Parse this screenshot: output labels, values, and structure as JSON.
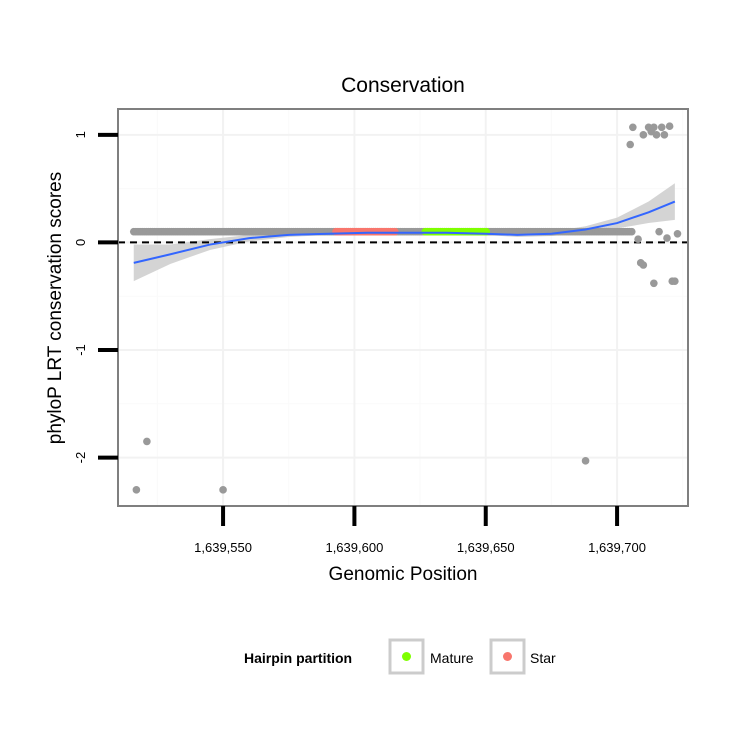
{
  "chart_data": {
    "type": "scatter",
    "title": "Conservation",
    "xlabel": "Genomic Position",
    "ylabel": "phyloP LRT conservation scores",
    "xlim": [
      1639510,
      1639727
    ],
    "ylim": [
      -2.45,
      1.24
    ],
    "x_ticks": [
      {
        "value": 1639550,
        "label": "1,639,550"
      },
      {
        "value": 1639600,
        "label": "1,639,600"
      },
      {
        "value": 1639650,
        "label": "1,639,650"
      },
      {
        "value": 1639700,
        "label": "1,639,700"
      }
    ],
    "y_ticks": [
      {
        "value": -2,
        "label": "-2"
      },
      {
        "value": -1,
        "label": "-1"
      },
      {
        "value": 0,
        "label": "0"
      },
      {
        "value": 1,
        "label": "1"
      }
    ],
    "grid": true,
    "reference_line": {
      "y": 0,
      "style": "dashed"
    },
    "background_points": {
      "color": "#999999",
      "dense_band": {
        "y": 0.1,
        "x_start": 1639516,
        "x_end": 1639706
      },
      "points": [
        [
          1639517,
          -2.3
        ],
        [
          1639521,
          -1.85
        ],
        [
          1639550,
          -2.3
        ],
        [
          1639688,
          -2.03
        ],
        [
          1639705,
          0.91
        ],
        [
          1639706,
          1.07
        ],
        [
          1639708,
          0.03
        ],
        [
          1639709,
          -0.19
        ],
        [
          1639710,
          -0.21
        ],
        [
          1639710,
          1.0
        ],
        [
          1639712,
          1.07
        ],
        [
          1639713,
          1.03
        ],
        [
          1639714,
          1.07
        ],
        [
          1639714,
          -0.38
        ],
        [
          1639715,
          1.0
        ],
        [
          1639716,
          0.1
        ],
        [
          1639717,
          1.07
        ],
        [
          1639718,
          1.0
        ],
        [
          1639719,
          0.04
        ],
        [
          1639720,
          1.08
        ],
        [
          1639721,
          -0.36
        ],
        [
          1639722,
          -0.36
        ],
        [
          1639723,
          0.08
        ]
      ]
    },
    "series": [
      {
        "name": "Mature",
        "color": "#7fff00",
        "x_start": 1639627,
        "x_end": 1639651,
        "y": 0.1
      },
      {
        "name": "Star",
        "color": "#f8766d",
        "x_start": 1639593,
        "x_end": 1639616,
        "y": 0.1
      }
    ],
    "smooth": {
      "color": "#3366ff",
      "band_color": "#cccccc",
      "fit": [
        [
          1639516,
          -0.19
        ],
        [
          1639530,
          -0.11
        ],
        [
          1639545,
          -0.02
        ],
        [
          1639560,
          0.04
        ],
        [
          1639575,
          0.07
        ],
        [
          1639590,
          0.08
        ],
        [
          1639605,
          0.09
        ],
        [
          1639620,
          0.09
        ],
        [
          1639635,
          0.09
        ],
        [
          1639650,
          0.08
        ],
        [
          1639662,
          0.07
        ],
        [
          1639675,
          0.08
        ],
        [
          1639688,
          0.12
        ],
        [
          1639700,
          0.18
        ],
        [
          1639712,
          0.28
        ],
        [
          1639722,
          0.38
        ]
      ],
      "lower": [
        [
          1639516,
          -0.36
        ],
        [
          1639530,
          -0.2
        ],
        [
          1639545,
          -0.07
        ],
        [
          1639560,
          0.01
        ],
        [
          1639575,
          0.05
        ],
        [
          1639590,
          0.07
        ],
        [
          1639605,
          0.08
        ],
        [
          1639620,
          0.08
        ],
        [
          1639635,
          0.08
        ],
        [
          1639650,
          0.07
        ],
        [
          1639662,
          0.05
        ],
        [
          1639675,
          0.06
        ],
        [
          1639688,
          0.09
        ],
        [
          1639700,
          0.13
        ],
        [
          1639712,
          0.18
        ],
        [
          1639722,
          0.21
        ]
      ],
      "upper": [
        [
          1639516,
          -0.02
        ],
        [
          1639530,
          -0.02
        ],
        [
          1639545,
          0.03
        ],
        [
          1639560,
          0.07
        ],
        [
          1639575,
          0.09
        ],
        [
          1639590,
          0.09
        ],
        [
          1639605,
          0.1
        ],
        [
          1639620,
          0.1
        ],
        [
          1639635,
          0.1
        ],
        [
          1639650,
          0.09
        ],
        [
          1639662,
          0.09
        ],
        [
          1639675,
          0.1
        ],
        [
          1639688,
          0.15
        ],
        [
          1639700,
          0.23
        ],
        [
          1639712,
          0.38
        ],
        [
          1639722,
          0.55
        ]
      ]
    },
    "legend": {
      "title": "Hairpin partition",
      "placement": "bottom",
      "entries": [
        {
          "label": "Mature",
          "color": "#7fff00"
        },
        {
          "label": "Star",
          "color": "#f8766d"
        }
      ]
    }
  }
}
